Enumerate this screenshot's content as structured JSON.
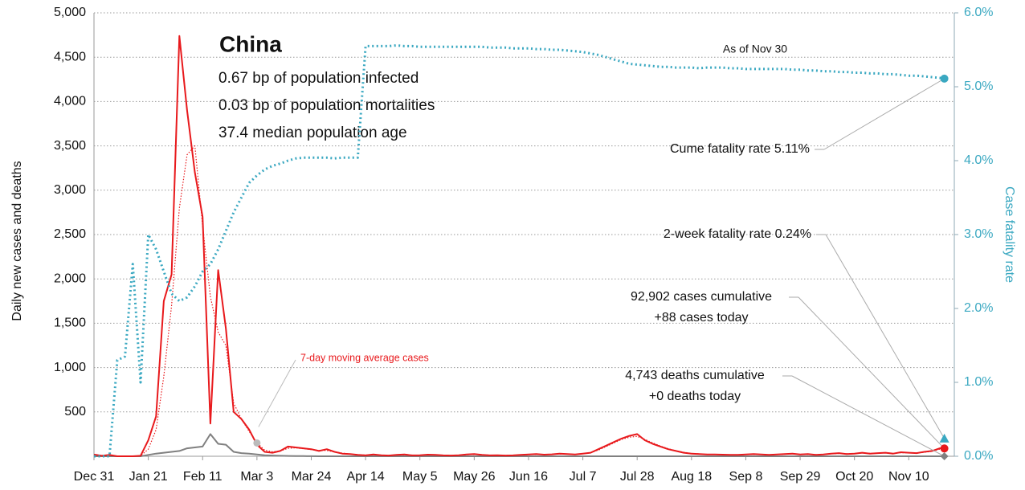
{
  "chart_data": {
    "type": "line",
    "title": "China",
    "subtitle_lines": [
      "0.67 bp of population infected",
      "0.03 bp of population mortalities",
      "37.4 median population age"
    ],
    "y_label": "Daily new cases and deaths",
    "y2_label": "Case fatality rate",
    "as_of": "As of Nov 30",
    "categories": [
      "Dec 31",
      null,
      null,
      null,
      null,
      null,
      null,
      "Jan 21",
      null,
      null,
      null,
      null,
      null,
      null,
      "Feb 11",
      null,
      null,
      null,
      null,
      null,
      null,
      "Mar 3",
      null,
      null,
      null,
      null,
      null,
      null,
      "Mar 24",
      null,
      null,
      null,
      null,
      null,
      null,
      "Apr 14",
      null,
      null,
      null,
      null,
      null,
      null,
      "May 5",
      null,
      null,
      null,
      null,
      null,
      null,
      "May 26",
      null,
      null,
      null,
      null,
      null,
      null,
      "Jun 16",
      null,
      null,
      null,
      null,
      null,
      null,
      "Jul 7",
      null,
      null,
      null,
      null,
      null,
      null,
      "Jul 28",
      null,
      null,
      null,
      null,
      null,
      null,
      "Aug 18",
      null,
      null,
      null,
      null,
      null,
      null,
      "Sep 8",
      null,
      null,
      null,
      null,
      null,
      null,
      "Sep 29",
      null,
      null,
      null,
      null,
      null,
      null,
      "Oct 20",
      null,
      null,
      null,
      null,
      null,
      null,
      "Nov 10",
      null,
      null,
      null,
      null,
      null
    ],
    "ylim": [
      0,
      5000
    ],
    "yticks": [
      500,
      {
        "value": 1000,
        "label": "1,000"
      },
      {
        "value": 1500,
        "label": "1,500"
      },
      {
        "value": 2000,
        "label": "2,000"
      },
      {
        "value": 2500,
        "label": "2,500"
      },
      {
        "value": 3000,
        "label": "3,000"
      },
      {
        "value": 3500,
        "label": "3,500"
      },
      {
        "value": 4000,
        "label": "4,000"
      },
      {
        "value": 4500,
        "label": "4,500"
      },
      {
        "value": 5000,
        "label": "5,000"
      }
    ],
    "y2lim": [
      0,
      6
    ],
    "y2ticks": [
      {
        "value": 0,
        "label": "0.0%"
      },
      {
        "value": 1,
        "label": "1.0%"
      },
      {
        "value": 2,
        "label": "2.0%"
      },
      {
        "value": 3,
        "label": "3.0%"
      },
      {
        "value": 4,
        "label": "4.0%"
      },
      {
        "value": 5,
        "label": "5.0%"
      },
      {
        "value": 6,
        "label": "6.0%"
      }
    ],
    "grid": true,
    "series": [
      {
        "name": "Daily cases",
        "color": "#e8191c",
        "style": "solid",
        "values": [
          20,
          5,
          15,
          0,
          0,
          0,
          5,
          180,
          450,
          1750,
          2050,
          4740,
          3900,
          3200,
          2700,
          370,
          2100,
          1440,
          500,
          420,
          300,
          130,
          50,
          40,
          60,
          110,
          100,
          90,
          80,
          60,
          80,
          50,
          30,
          25,
          15,
          10,
          20,
          12,
          8,
          15,
          20,
          10,
          12,
          18,
          15,
          10,
          8,
          12,
          20,
          25,
          15,
          10,
          12,
          8,
          10,
          15,
          20,
          25,
          18,
          22,
          30,
          25,
          20,
          30,
          40,
          80,
          120,
          160,
          200,
          230,
          250,
          180,
          140,
          110,
          80,
          60,
          40,
          30,
          25,
          20,
          20,
          18,
          15,
          15,
          20,
          25,
          20,
          15,
          20,
          25,
          30,
          20,
          25,
          15,
          20,
          30,
          35,
          25,
          30,
          40,
          30,
          35,
          40,
          30,
          45,
          40,
          35,
          50,
          60,
          90,
          88
        ]
      },
      {
        "name": "7-day moving average cases",
        "color": "#e8191c",
        "style": "dotted",
        "values": [
          10,
          10,
          8,
          4,
          2,
          2,
          5,
          80,
          300,
          900,
          1700,
          2800,
          3400,
          3500,
          2600,
          1800,
          1400,
          1250,
          600,
          420,
          280,
          150,
          70,
          50,
          60,
          90,
          95,
          85,
          75,
          65,
          65,
          50,
          35,
          25,
          18,
          14,
          15,
          14,
          12,
          13,
          15,
          13,
          13,
          15,
          14,
          12,
          10,
          12,
          17,
          20,
          17,
          13,
          11,
          10,
          11,
          14,
          18,
          21,
          20,
          22,
          25,
          24,
          22,
          28,
          40,
          70,
          110,
          150,
          190,
          215,
          225,
          190,
          150,
          115,
          85,
          62,
          45,
          33,
          27,
          22,
          20,
          18,
          16,
          16,
          19,
          22,
          20,
          17,
          19,
          23,
          26,
          23,
          22,
          18,
          20,
          27,
          32,
          28,
          30,
          36,
          33,
          34,
          38,
          34,
          40,
          40,
          38,
          45,
          55,
          80,
          90
        ]
      },
      {
        "name": "Daily deaths",
        "color": "#808080",
        "style": "solid",
        "values": [
          0,
          0,
          0,
          0,
          0,
          0,
          0,
          15,
          30,
          40,
          50,
          60,
          90,
          100,
          110,
          250,
          140,
          130,
          50,
          35,
          30,
          20,
          12,
          8,
          5,
          4,
          3,
          2,
          1,
          0,
          0,
          0,
          0,
          0,
          0,
          0,
          0,
          0,
          0,
          0,
          0,
          0,
          0,
          0,
          0,
          0,
          0,
          0,
          0,
          0,
          0,
          0,
          0,
          0,
          0,
          0,
          0,
          0,
          0,
          0,
          0,
          0,
          0,
          0,
          0,
          0,
          0,
          0,
          0,
          0,
          0,
          0,
          0,
          0,
          0,
          0,
          0,
          0,
          0,
          0,
          0,
          0,
          0,
          0,
          0,
          0,
          0,
          0,
          0,
          0,
          0,
          0,
          0,
          0,
          0,
          0,
          0,
          0,
          0,
          0,
          0,
          0,
          0,
          0,
          0,
          0,
          0,
          0,
          0,
          0,
          0
        ]
      },
      {
        "name": "Case fatality rate",
        "color": "#3aa8c1",
        "style": "dotted",
        "axis": "y2",
        "values": [
          0,
          0,
          0,
          1.3,
          1.35,
          2.6,
          1.0,
          3.0,
          2.8,
          2.5,
          2.2,
          2.1,
          2.15,
          2.3,
          2.5,
          2.6,
          2.8,
          3.05,
          3.3,
          3.5,
          3.7,
          3.8,
          3.88,
          3.93,
          3.96,
          4.0,
          4.03,
          4.04,
          4.04,
          4.04,
          4.04,
          4.03,
          4.04,
          4.04,
          4.04,
          5.55,
          5.55,
          5.55,
          5.55,
          5.56,
          5.55,
          5.55,
          5.54,
          5.54,
          5.54,
          5.54,
          5.54,
          5.54,
          5.54,
          5.54,
          5.54,
          5.53,
          5.53,
          5.53,
          5.52,
          5.52,
          5.52,
          5.51,
          5.51,
          5.5,
          5.5,
          5.49,
          5.48,
          5.47,
          5.45,
          5.43,
          5.4,
          5.37,
          5.34,
          5.31,
          5.3,
          5.29,
          5.28,
          5.27,
          5.27,
          5.26,
          5.26,
          5.26,
          5.25,
          5.26,
          5.26,
          5.26,
          5.25,
          5.25,
          5.24,
          5.24,
          5.24,
          5.24,
          5.24,
          5.24,
          5.23,
          5.23,
          5.22,
          5.22,
          5.21,
          5.21,
          5.2,
          5.2,
          5.19,
          5.19,
          5.18,
          5.18,
          5.17,
          5.17,
          5.16,
          5.15,
          5.15,
          5.14,
          5.13,
          5.12,
          5.11
        ]
      }
    ],
    "annotations": [
      {
        "lines": [
          "Cume fatality rate 5.11%"
        ],
        "value": 5.11,
        "axis": "y2",
        "marker": "circle",
        "color": "#3aa8c1"
      },
      {
        "lines": [
          "2-week fatality rate 0.24%"
        ],
        "value": 0.24,
        "axis": "y2",
        "marker": "triangle",
        "color": "#3aa8c1"
      },
      {
        "lines": [
          "92,902 cases cumulative",
          "+88 cases today"
        ],
        "value": 88,
        "axis": "y",
        "marker": "circle",
        "color": "#e8191c"
      },
      {
        "lines": [
          "4,743 deaths cumulative",
          "+0 deaths today"
        ],
        "value": 0,
        "axis": "y",
        "marker": "diamond",
        "color": "#808080"
      }
    ]
  }
}
